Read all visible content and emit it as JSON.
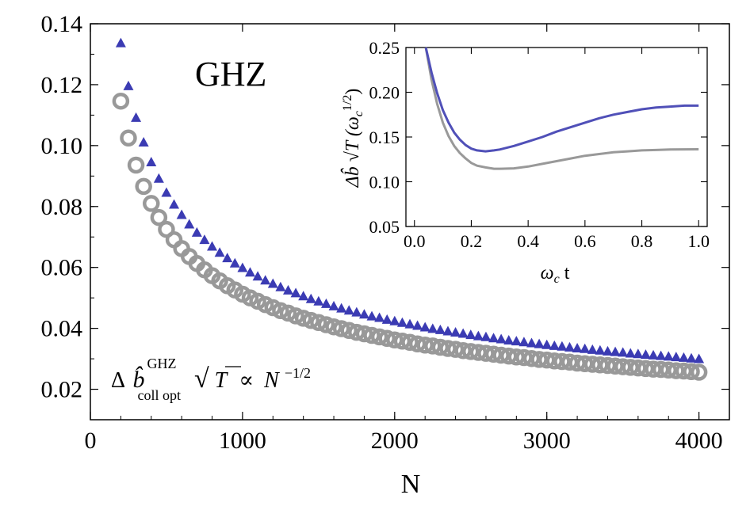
{
  "chart_data": [
    {
      "type": "scatter",
      "title": "GHZ",
      "xlabel": "N",
      "ylabel": "",
      "xlim": [
        0,
        4200
      ],
      "ylim": [
        0.01,
        0.14
      ],
      "xticks": [
        "0",
        "1000",
        "2000",
        "3000",
        "4000"
      ],
      "yticks": [
        "0.02",
        "0.04",
        "0.06",
        "0.08",
        "0.10",
        "0.12",
        "0.14"
      ],
      "annotation": {
        "prefix": "Δ",
        "b_hat": "b̂",
        "superscript": "GHZ",
        "subscript": "coll opt",
        "sqrt_symbol": "√",
        "sqrt_arg": "T",
        "proportional": "∝",
        "base": "N",
        "exponent": "−1/2"
      },
      "x": [
        200,
        250,
        300,
        350,
        400,
        450,
        500,
        550,
        600,
        650,
        700,
        750,
        800,
        850,
        900,
        950,
        1000,
        1050,
        1100,
        1150,
        1200,
        1250,
        1300,
        1350,
        1400,
        1450,
        1500,
        1550,
        1600,
        1650,
        1700,
        1750,
        1800,
        1850,
        1900,
        1950,
        2000,
        2050,
        2100,
        2150,
        2200,
        2250,
        2300,
        2350,
        2400,
        2450,
        2500,
        2550,
        2600,
        2650,
        2700,
        2750,
        2800,
        2850,
        2900,
        2950,
        3000,
        3050,
        3100,
        3150,
        3200,
        3250,
        3300,
        3350,
        3400,
        3450,
        3500,
        3550,
        3600,
        3650,
        3700,
        3750,
        3800,
        3850,
        3900,
        3950,
        4000
      ],
      "series": [
        {
          "name": "triangles",
          "color": "#3b3bb3",
          "marker": "triangle",
          "values": [
            0.1336,
            0.1195,
            0.1091,
            0.101,
            0.0945,
            0.0891,
            0.0845,
            0.0806,
            0.0772,
            0.0741,
            0.0714,
            0.069,
            0.0668,
            0.0648,
            0.063,
            0.0613,
            0.0598,
            0.0583,
            0.057,
            0.0557,
            0.0546,
            0.0535,
            0.0524,
            0.0515,
            0.0505,
            0.0496,
            0.0488,
            0.048,
            0.0472,
            0.0465,
            0.0458,
            0.0452,
            0.0445,
            0.0439,
            0.0434,
            0.0428,
            0.0423,
            0.0418,
            0.0413,
            0.0408,
            0.0403,
            0.0398,
            0.0394,
            0.039,
            0.0386,
            0.0382,
            0.0378,
            0.0374,
            0.0371,
            0.0367,
            0.0364,
            0.036,
            0.0357,
            0.0354,
            0.0351,
            0.0348,
            0.0345,
            0.0342,
            0.034,
            0.0337,
            0.0334,
            0.0332,
            0.0329,
            0.0327,
            0.0324,
            0.0322,
            0.032,
            0.0317,
            0.0315,
            0.0313,
            0.0311,
            0.0309,
            0.0307,
            0.0305,
            0.0303,
            0.0301,
            0.0299
          ]
        },
        {
          "name": "circles",
          "color": "#999999",
          "marker": "ring",
          "values": [
            0.1146,
            0.1025,
            0.0936,
            0.0866,
            0.081,
            0.0764,
            0.0725,
            0.0691,
            0.0662,
            0.0636,
            0.0613,
            0.0592,
            0.0573,
            0.0556,
            0.054,
            0.0526,
            0.0512,
            0.05,
            0.0489,
            0.0478,
            0.0468,
            0.0458,
            0.045,
            0.0441,
            0.0433,
            0.0426,
            0.0419,
            0.0412,
            0.0405,
            0.0399,
            0.0393,
            0.0387,
            0.0382,
            0.0377,
            0.0372,
            0.0367,
            0.0362,
            0.0358,
            0.0354,
            0.0349,
            0.0345,
            0.0342,
            0.0338,
            0.0334,
            0.0331,
            0.0327,
            0.0324,
            0.0321,
            0.0318,
            0.0315,
            0.0312,
            0.0309,
            0.0306,
            0.0304,
            0.0301,
            0.0298,
            0.0296,
            0.0293,
            0.0291,
            0.0289,
            0.0286,
            0.0284,
            0.0282,
            0.028,
            0.0278,
            0.0276,
            0.0274,
            0.0272,
            0.027,
            0.0268,
            0.0266,
            0.0265,
            0.0263,
            0.0261,
            0.026,
            0.0258,
            0.0256
          ]
        }
      ]
    },
    {
      "type": "line",
      "title": "",
      "xlabel_symbol": "ω",
      "xlabel_sub": "c",
      "xlabel_suffix": "t",
      "ylabel_main": "Δb̂ √T (ω",
      "ylabel_sub": "c",
      "ylabel_sup": "1/2",
      "ylabel_close": ")",
      "xlim": [
        -0.03,
        1.03
      ],
      "ylim": [
        0.05,
        0.25
      ],
      "xticks": [
        "0.0",
        "0.2",
        "0.4",
        "0.6",
        "0.8",
        "1.0"
      ],
      "yticks": [
        "0.05",
        "0.10",
        "0.15",
        "0.20",
        "0.25"
      ],
      "x": [
        0.04,
        0.06,
        0.08,
        0.1,
        0.12,
        0.14,
        0.16,
        0.18,
        0.2,
        0.22,
        0.25,
        0.28,
        0.3,
        0.35,
        0.4,
        0.45,
        0.5,
        0.55,
        0.6,
        0.65,
        0.7,
        0.75,
        0.8,
        0.85,
        0.9,
        0.95,
        1.0
      ],
      "series": [
        {
          "name": "blue curve",
          "color": "#5050b8",
          "values": [
            0.25,
            0.222,
            0.199,
            0.18,
            0.166,
            0.155,
            0.147,
            0.141,
            0.137,
            0.135,
            0.134,
            0.135,
            0.136,
            0.14,
            0.145,
            0.15,
            0.156,
            0.161,
            0.166,
            0.171,
            0.175,
            0.178,
            0.181,
            0.183,
            0.184,
            0.185,
            0.185
          ]
        },
        {
          "name": "gray curve",
          "color": "#999999",
          "values": [
            0.25,
            0.214,
            0.187,
            0.166,
            0.151,
            0.14,
            0.132,
            0.126,
            0.121,
            0.118,
            0.116,
            0.1145,
            0.1145,
            0.115,
            0.117,
            0.12,
            0.123,
            0.126,
            0.129,
            0.131,
            0.133,
            0.134,
            0.135,
            0.1355,
            0.136,
            0.1362,
            0.1363
          ]
        }
      ]
    }
  ]
}
